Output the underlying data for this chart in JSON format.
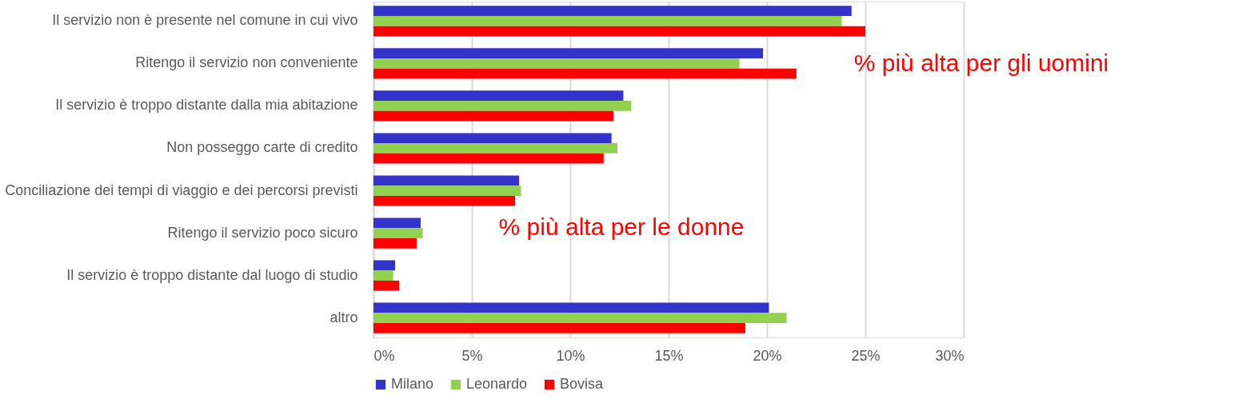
{
  "chart_data": {
    "type": "bar",
    "orientation": "horizontal",
    "categories": [
      "Il servizio non è presente nel comune in cui vivo",
      "Ritengo il servizio non conveniente",
      "Il servizio è troppo distante dalla mia abitazione",
      "Non posseggo carte di credito",
      "Conciliazione dei tempi di viaggio e dei percorsi previsti",
      "Ritengo il servizio poco sicuro",
      "Il servizio è troppo distante dal luogo di studio",
      "altro"
    ],
    "series": [
      {
        "name": "Milano",
        "color": "#3333cc",
        "values": [
          24.3,
          19.8,
          12.7,
          12.1,
          7.4,
          2.4,
          1.1,
          20.1
        ]
      },
      {
        "name": "Leonardo",
        "color": "#92d050",
        "values": [
          23.8,
          18.6,
          13.1,
          12.4,
          7.5,
          2.5,
          1.0,
          21.0
        ]
      },
      {
        "name": "Bovisa",
        "color": "#ff0000",
        "values": [
          25.0,
          21.5,
          12.2,
          11.7,
          7.2,
          2.2,
          1.3,
          18.9
        ]
      }
    ],
    "xlim": [
      0,
      30
    ],
    "xticks": [
      {
        "value": 0,
        "label": "0%"
      },
      {
        "value": 5,
        "label": "5%"
      },
      {
        "value": 10,
        "label": "10%"
      },
      {
        "value": 15,
        "label": "15%"
      },
      {
        "value": 20,
        "label": "20%"
      },
      {
        "value": 25,
        "label": "25%"
      },
      {
        "value": 30,
        "label": "30%"
      }
    ],
    "grid": "x",
    "legend": "bottom left",
    "annotations": [
      "% più alta per gli uomini",
      "% più alta per le donne"
    ]
  }
}
